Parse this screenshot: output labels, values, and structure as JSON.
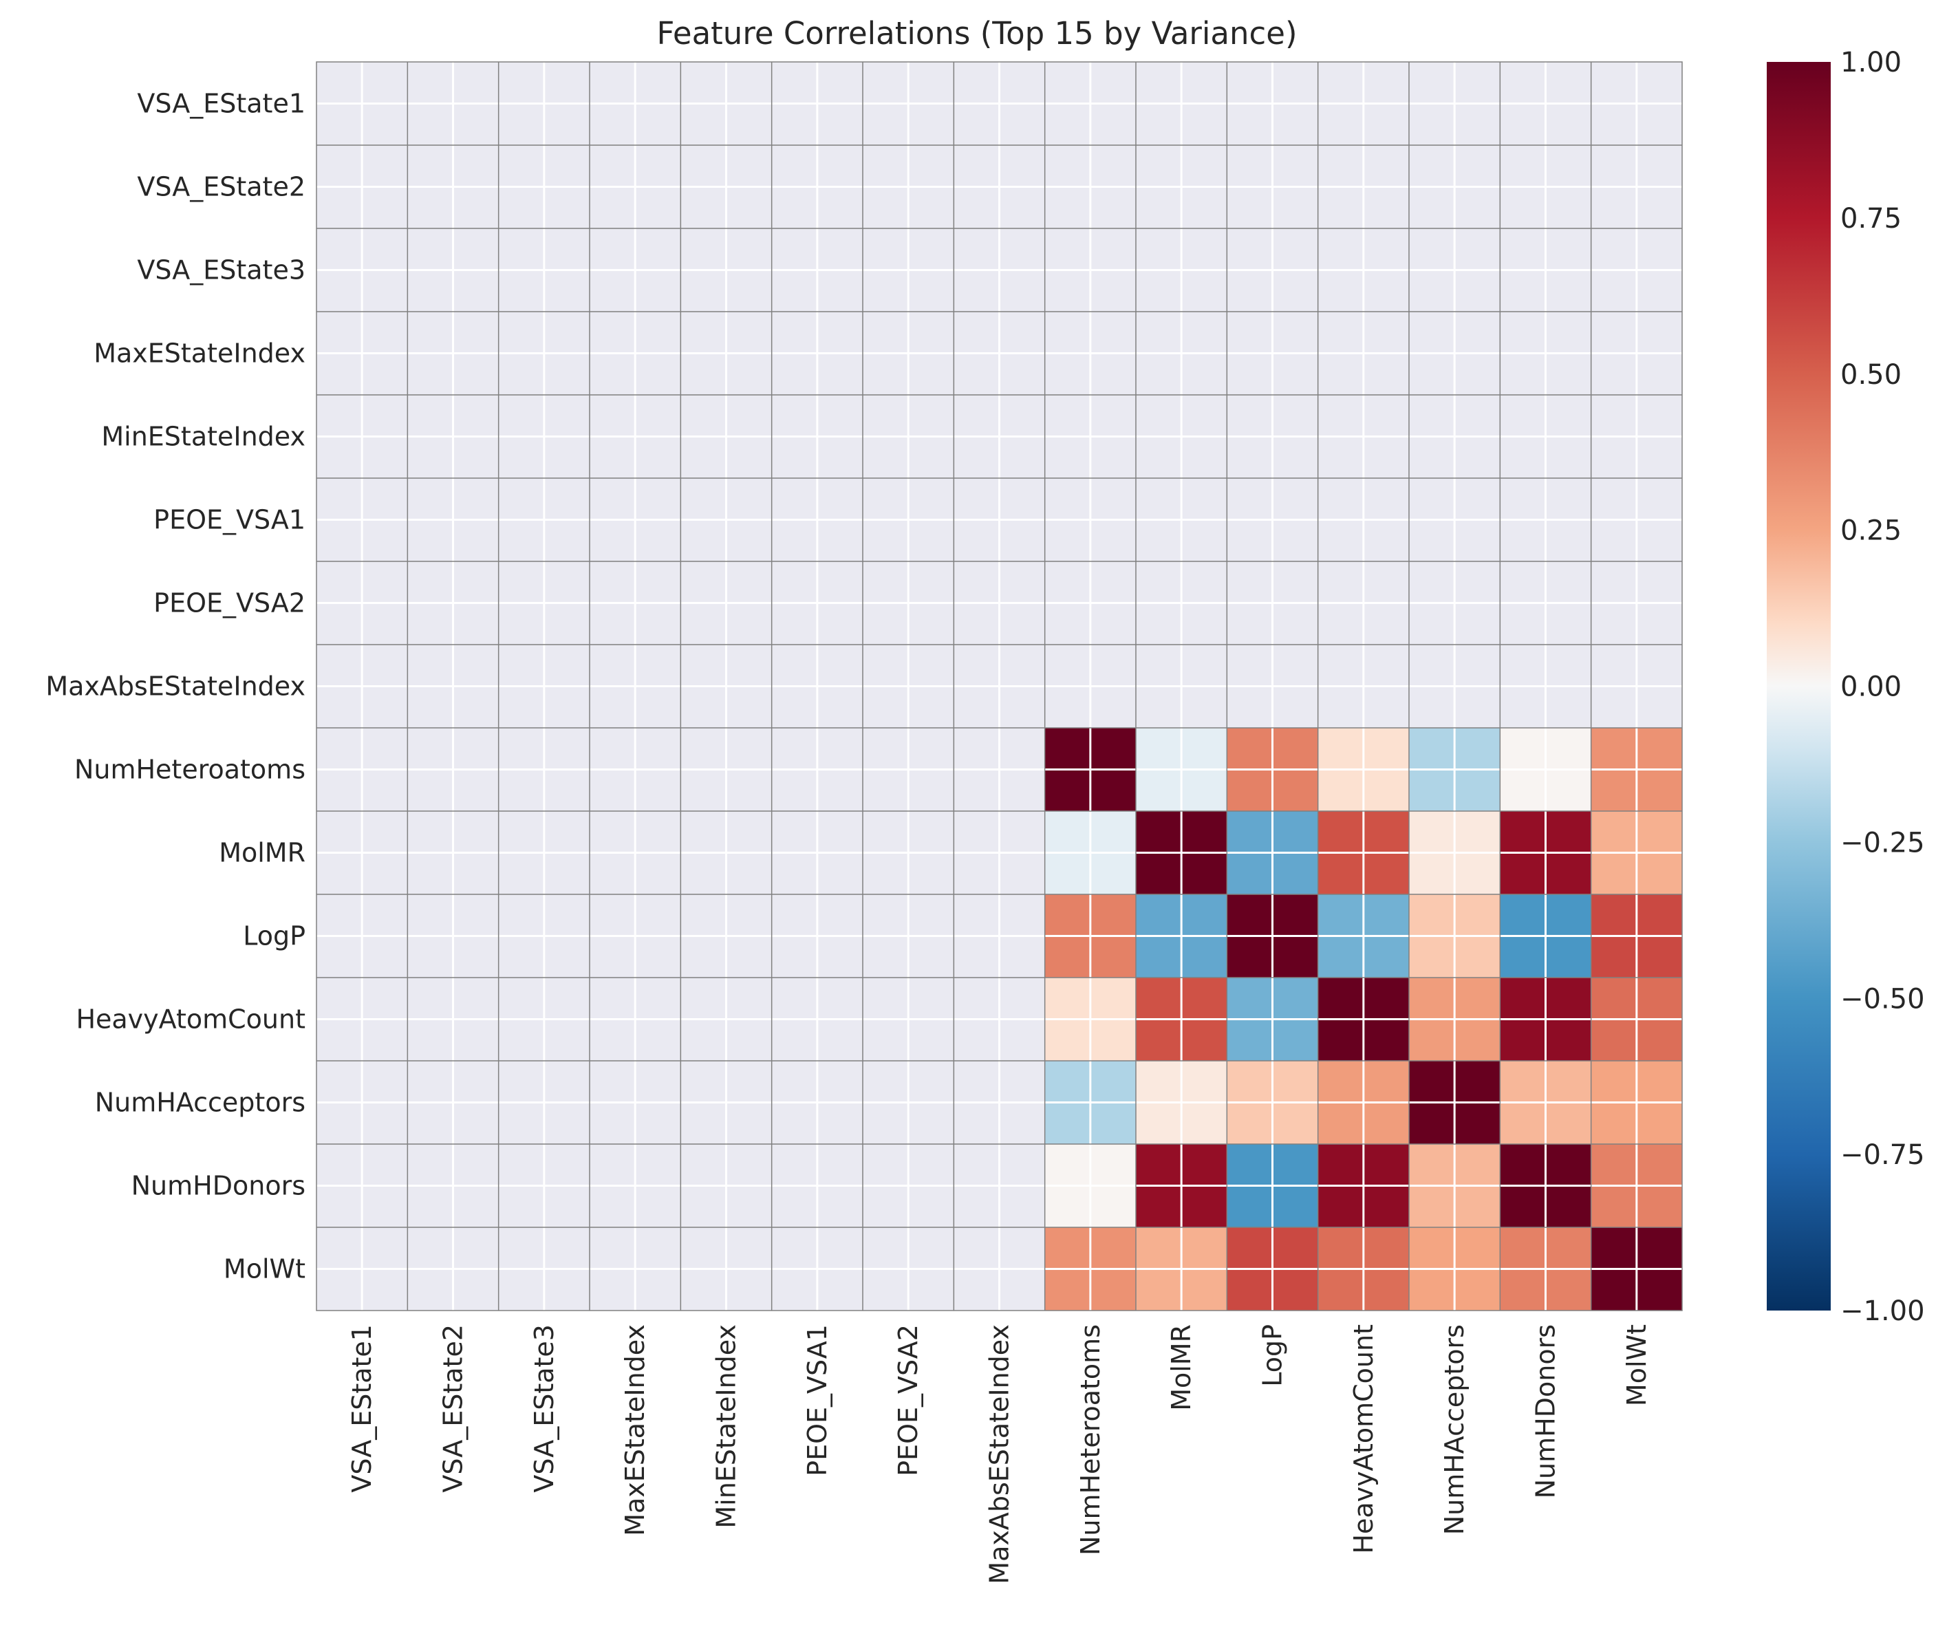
{
  "chart_data": {
    "type": "heatmap",
    "title": "Feature Correlations (Top 15 by Variance)",
    "xlabel": "",
    "ylabel": "",
    "labels": [
      "VSA_EState1",
      "VSA_EState2",
      "VSA_EState3",
      "MaxEStateIndex",
      "MinEStateIndex",
      "PEOE_VSA1",
      "PEOE_VSA2",
      "MaxAbsEStateIndex",
      "NumHeteroatoms",
      "MolMR",
      "LogP",
      "HeavyAtomCount",
      "NumHAcceptors",
      "NumHDonors",
      "MolWt"
    ],
    "values": [
      [
        null,
        null,
        null,
        null,
        null,
        null,
        null,
        null,
        null,
        null,
        null,
        null,
        null,
        null,
        null
      ],
      [
        null,
        null,
        null,
        null,
        null,
        null,
        null,
        null,
        null,
        null,
        null,
        null,
        null,
        null,
        null
      ],
      [
        null,
        null,
        null,
        null,
        null,
        null,
        null,
        null,
        null,
        null,
        null,
        null,
        null,
        null,
        null
      ],
      [
        null,
        null,
        null,
        null,
        null,
        null,
        null,
        null,
        null,
        null,
        null,
        null,
        null,
        null,
        null
      ],
      [
        null,
        null,
        null,
        null,
        null,
        null,
        null,
        null,
        null,
        null,
        null,
        null,
        null,
        null,
        null
      ],
      [
        null,
        null,
        null,
        null,
        null,
        null,
        null,
        null,
        null,
        null,
        null,
        null,
        null,
        null,
        null
      ],
      [
        null,
        null,
        null,
        null,
        null,
        null,
        null,
        null,
        null,
        null,
        null,
        null,
        null,
        null,
        null
      ],
      [
        null,
        null,
        null,
        null,
        null,
        null,
        null,
        null,
        null,
        null,
        null,
        null,
        null,
        null,
        null
      ],
      [
        null,
        null,
        null,
        null,
        null,
        null,
        null,
        null,
        1.0,
        -0.05,
        0.38,
        0.08,
        -0.18,
        0.01,
        0.32
      ],
      [
        null,
        null,
        null,
        null,
        null,
        null,
        null,
        null,
        -0.05,
        1.0,
        -0.4,
        0.55,
        0.05,
        0.85,
        0.22
      ],
      [
        null,
        null,
        null,
        null,
        null,
        null,
        null,
        null,
        0.38,
        -0.4,
        1.0,
        -0.35,
        0.15,
        -0.48,
        0.58
      ],
      [
        null,
        null,
        null,
        null,
        null,
        null,
        null,
        null,
        0.08,
        0.55,
        -0.35,
        1.0,
        0.28,
        0.87,
        0.45
      ],
      [
        null,
        null,
        null,
        null,
        null,
        null,
        null,
        null,
        -0.18,
        0.05,
        0.15,
        0.28,
        1.0,
        0.2,
        0.25
      ],
      [
        null,
        null,
        null,
        null,
        null,
        null,
        null,
        null,
        0.01,
        0.85,
        -0.48,
        0.87,
        0.2,
        1.0,
        0.38
      ],
      [
        null,
        null,
        null,
        null,
        null,
        null,
        null,
        null,
        0.32,
        0.22,
        0.58,
        0.45,
        0.25,
        0.38,
        1.0
      ]
    ],
    "vmin": -1.0,
    "vmax": 1.0,
    "colormap": "RdBu_r",
    "colorbar_ticks": [
      "1.00",
      "0.75",
      "0.50",
      "0.25",
      "0.00",
      "−0.25",
      "−0.50",
      "−0.75",
      "−1.00"
    ],
    "colorbar_tick_values": [
      1.0,
      0.75,
      0.5,
      0.25,
      0.0,
      -0.25,
      -0.5,
      -0.75,
      -1.0
    ],
    "nan_color": "#eaeaf2",
    "grid": true
  }
}
